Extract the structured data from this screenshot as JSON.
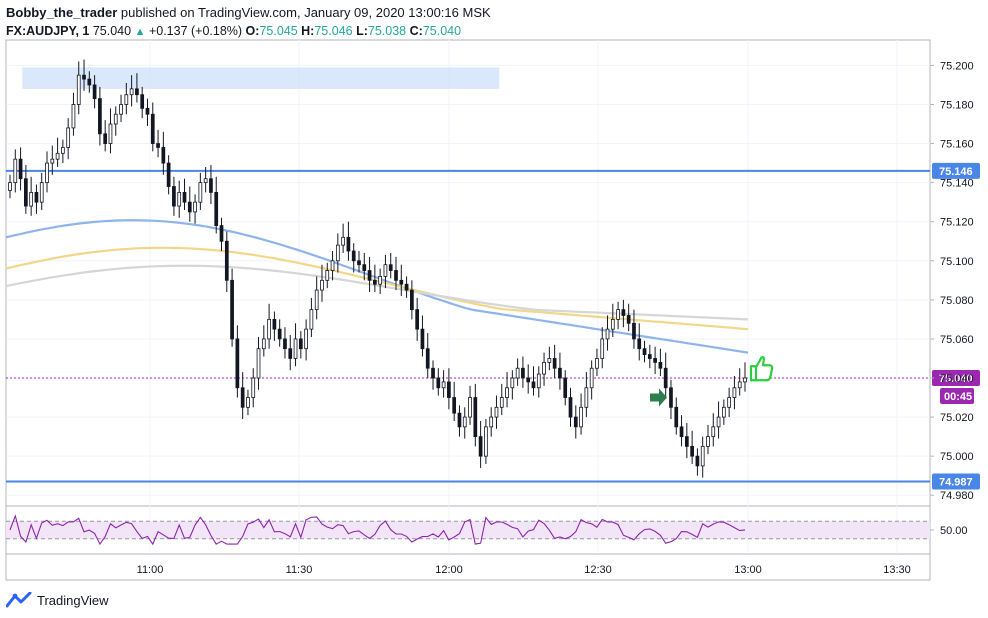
{
  "header": {
    "author": "Bobby_the_trader",
    "published_text": "published on TradingView.com, January 09, 2020 13:00:16 MSK",
    "symbol": "FX:AUDJPY, 1",
    "last_price": "75.040",
    "change": "+0.137 (+0.18%)",
    "o_label": "O:",
    "o_value": "75.045",
    "h_label": "H:",
    "h_value": "75.046",
    "l_label": "L:",
    "l_value": "75.038",
    "c_label": "C:",
    "c_value": "75.040"
  },
  "footer": {
    "brand": "TradingView"
  },
  "colors": {
    "up_candle": "#ffffff",
    "candle_border": "#131722",
    "down_candle": "#131722",
    "level_line": "#4a86e8",
    "ma_fast": "#8fb4ec",
    "ma_mid": "#f2d78a",
    "ma_slow": "#d6d6d6",
    "zone_fill": "#cfe0f9",
    "price_badge": "#9c27b0",
    "rsi_line": "#8e24aa",
    "rsi_band": "#f3e5f8",
    "arrow_green": "#2e7d4f",
    "thumb_green": "#2ecc40"
  },
  "annotations": {
    "arrow_icon": "green-arrow-right",
    "thumb_icon": "thumbs-up"
  },
  "chart_data": {
    "type": "candlestick",
    "timeframe": "1",
    "ylim": [
      74.975,
      75.213
    ],
    "y_ticks": [
      "75.200",
      "75.180",
      "75.160",
      "75.140",
      "75.120",
      "75.100",
      "75.080",
      "75.060",
      "75.040",
      "75.020",
      "75.000",
      "74.980"
    ],
    "x_ticks": [
      "11:00",
      "11:30",
      "12:00",
      "12:30",
      "13:00",
      "13:30"
    ],
    "levels": [
      {
        "price": 75.146,
        "label": "75.146"
      },
      {
        "price": 74.987,
        "label": "74.987"
      }
    ],
    "current_price": {
      "price": 75.04,
      "label": "75.040",
      "countdown": "00:45"
    },
    "supply_zone": {
      "top": 75.199,
      "bottom": 75.188,
      "start_bar": 8,
      "end_bar": 103
    },
    "ohlc_bars_count": 150,
    "closes": [
      75.14,
      75.152,
      75.142,
      75.128,
      75.135,
      75.13,
      75.14,
      75.15,
      75.152,
      75.155,
      75.158,
      75.168,
      75.18,
      75.195,
      75.193,
      75.19,
      75.183,
      75.165,
      75.16,
      75.17,
      75.175,
      75.18,
      75.185,
      75.188,
      75.185,
      75.178,
      75.175,
      75.16,
      75.158,
      75.15,
      75.138,
      75.128,
      75.135,
      75.13,
      75.125,
      75.13,
      75.14,
      75.142,
      75.135,
      75.118,
      75.11,
      75.09,
      75.06,
      75.035,
      75.025,
      75.03,
      75.04,
      75.055,
      75.06,
      75.07,
      75.065,
      75.06,
      75.055,
      75.05,
      75.06,
      75.055,
      75.065,
      75.075,
      75.085,
      75.09,
      75.095,
      75.1,
      75.108,
      75.112,
      75.105,
      75.1,
      75.098,
      75.095,
      75.09,
      75.088,
      75.092,
      75.098,
      75.095,
      75.09,
      75.088,
      75.085,
      75.075,
      75.065,
      75.055,
      75.045,
      75.04,
      75.035,
      75.038,
      75.03,
      75.022,
      75.015,
      75.02,
      75.03,
      75.01,
      75.0,
      75.015,
      75.02,
      75.025,
      75.03,
      75.035,
      75.04,
      75.045,
      75.04,
      75.038,
      75.035,
      75.042,
      75.048,
      75.05,
      75.045,
      75.04,
      75.03,
      75.02,
      75.015,
      75.025,
      75.035,
      75.045,
      75.05,
      75.06,
      75.065,
      75.07,
      75.075,
      75.072,
      75.068,
      75.06,
      75.055,
      75.052,
      75.05,
      75.048,
      75.045,
      75.035,
      75.025,
      75.015,
      75.01,
      75.005,
      75.0,
      74.995,
      75.005,
      75.01,
      75.015,
      75.02,
      75.025,
      75.03,
      75.035,
      75.038,
      75.04
    ],
    "rsi": {
      "ylim": [
        0,
        100
      ],
      "tick": "50.00",
      "upper_band": 70,
      "lower_band": 30
    },
    "moving_averages": [
      {
        "color": "ma_fast",
        "start": 75.112,
        "end": 75.053
      },
      {
        "color": "ma_mid",
        "start": 75.096,
        "end": 75.065
      },
      {
        "color": "ma_slow",
        "start": 75.087,
        "end": 75.07
      }
    ]
  }
}
